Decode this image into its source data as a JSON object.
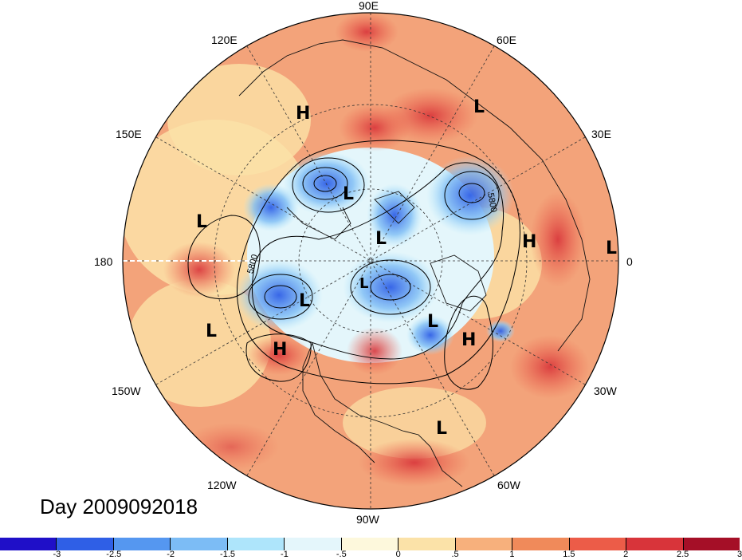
{
  "day_label": "Day 2009092018",
  "lon_labels": {
    "e90": "90E",
    "e120": "120E",
    "e60": "60E",
    "e150": "150E",
    "e30": "30E",
    "w180": "180",
    "e0": "0",
    "w150": "150W",
    "w30": "30W",
    "w120": "120W",
    "w60": "60W",
    "w90": "90W"
  },
  "contour_labels": {
    "a": "5800",
    "b": "5800"
  },
  "pressure_centers": [
    {
      "type": "H",
      "text": "H"
    },
    {
      "type": "L",
      "text": "L"
    },
    {
      "type": "L",
      "text": "L"
    },
    {
      "type": "L",
      "text": "L"
    },
    {
      "type": "L",
      "text": "L"
    },
    {
      "type": "H",
      "text": "H"
    },
    {
      "type": "L",
      "text": "L"
    },
    {
      "type": "L",
      "text": "L"
    },
    {
      "type": "L",
      "text": "L"
    },
    {
      "type": "L",
      "text": "L"
    },
    {
      "type": "H",
      "text": "H"
    },
    {
      "type": "H",
      "text": "H"
    },
    {
      "type": "L",
      "text": "L"
    },
    {
      "type": "L",
      "text": "L"
    }
  ],
  "colorbar": {
    "colors": [
      "#1f0fc8",
      "#2f5fe6",
      "#5597f0",
      "#7cbcf5",
      "#aee5fb",
      "#e4f6fb",
      "#fdf8dc",
      "#fbe2a8",
      "#f7b07c",
      "#f08a5a",
      "#ec5c48",
      "#d8343a",
      "#a50f27"
    ],
    "ticks": [
      "-3",
      "-2.5",
      "-2",
      "-1.5",
      "-1",
      "-.5",
      "0",
      ".5",
      "1",
      "1.5",
      "2",
      "2.5",
      "3"
    ]
  },
  "colors": {
    "background": "#ffffff",
    "warm": "#f3a37a",
    "cold": "#5aa0f0"
  }
}
